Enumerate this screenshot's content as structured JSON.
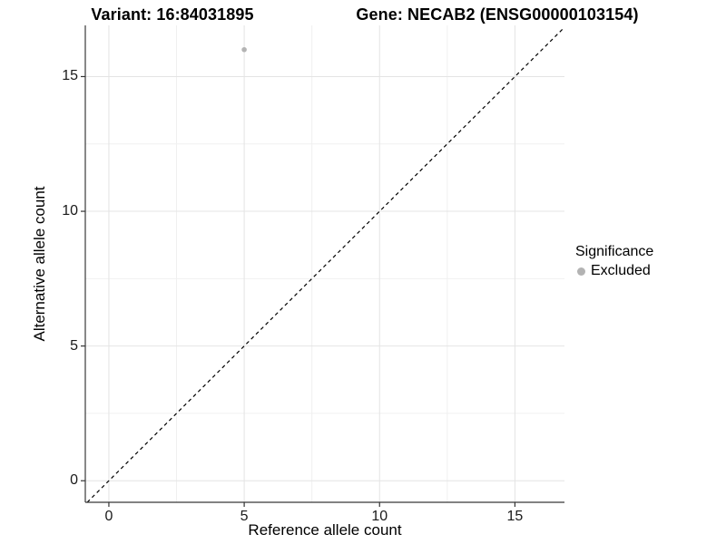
{
  "page": {
    "background": "#ffffff"
  },
  "chart_data": {
    "type": "scatter",
    "titles": {
      "left": "Variant: 16:84031895",
      "right": "Gene: NECAB2 (ENSG00000103154)"
    },
    "xlabel": "Reference allele count",
    "ylabel": "Alternative allele count",
    "xlim": [
      -0.87,
      16.83
    ],
    "ylim": [
      -0.8,
      16.9
    ],
    "xticks": [
      0,
      5,
      10,
      15
    ],
    "yticks": [
      0,
      5,
      10,
      15
    ],
    "xminor": [
      2.5,
      7.5,
      12.5
    ],
    "yminor": [
      2.5,
      7.5,
      12.5
    ],
    "grid": "major+minor",
    "reference_line": {
      "type": "identity y=x",
      "style": "dashed",
      "color": "#000000"
    },
    "series": [
      {
        "name": "Excluded",
        "color": "#b3b3b3",
        "points": [
          {
            "x": 5,
            "y": 16
          }
        ]
      }
    ],
    "legend": {
      "title": "Significance",
      "position": "right",
      "entries": [
        {
          "label": "Excluded",
          "color": "#b3b3b3",
          "marker": "circle"
        }
      ]
    },
    "colors": {
      "grid_major": "#e4e4e4",
      "grid_minor": "#f0f0f0",
      "axis_line": "#383838",
      "tick_mark": "#333333",
      "text": "#000000"
    }
  }
}
